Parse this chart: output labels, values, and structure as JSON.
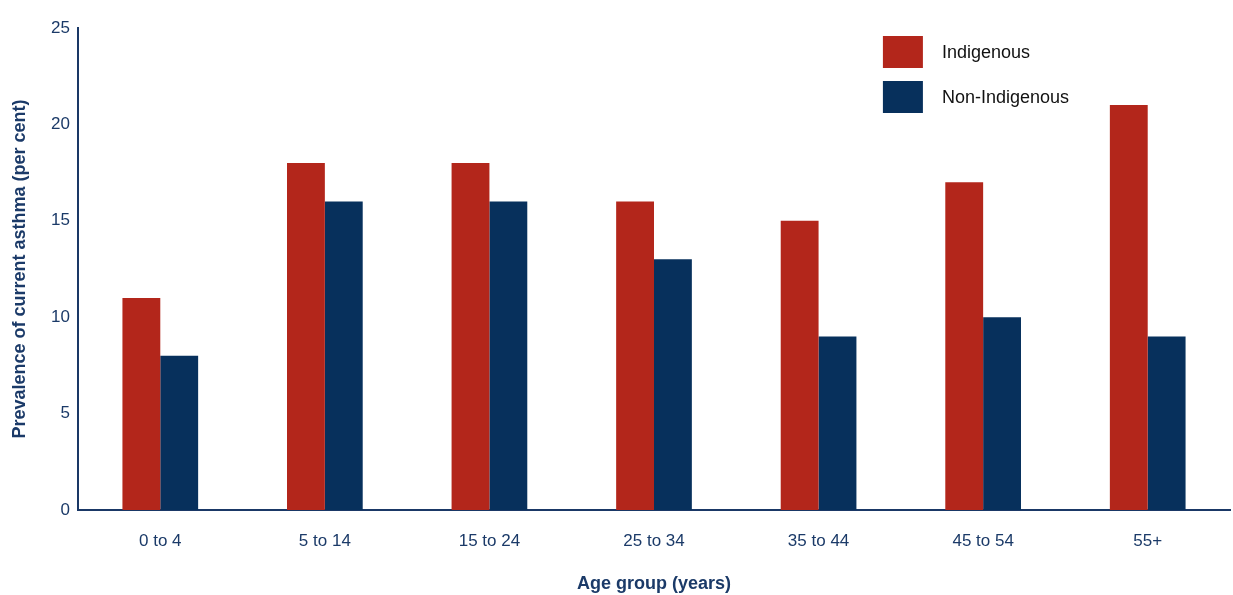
{
  "chart_data": {
    "type": "bar",
    "xlabel": "Age group (years)",
    "ylabel": "Prevalence of current asthma (per cent)",
    "categories": [
      "0 to 4",
      "5 to 14",
      "15 to 24",
      "25 to 34",
      "35 to 44",
      "45 to 54",
      "55+"
    ],
    "series": [
      {
        "name": "Indigenous",
        "color": "#b3261b",
        "values": [
          11,
          18,
          18,
          16,
          15,
          17,
          21
        ]
      },
      {
        "name": "Non-Indigenous",
        "color": "#07305c",
        "values": [
          8,
          16,
          16,
          13,
          9,
          10,
          9
        ]
      }
    ],
    "ylim": [
      0,
      25
    ],
    "yticks": [
      0,
      5,
      10,
      15,
      20,
      25
    ],
    "legend": "top right"
  }
}
